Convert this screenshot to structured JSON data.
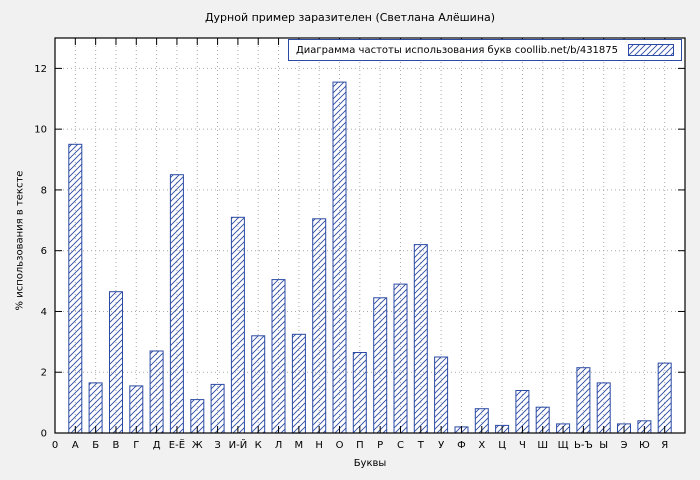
{
  "title": "Дурной пример заразителен (Светлана Алёшина)",
  "legend": {
    "label": "Диаграмма частоты использования букв  coollib.net/b/431875"
  },
  "colors": {
    "bar": "#2b4aa3",
    "grid": "#a8a8a8",
    "axis": "#000000",
    "figure_bg": "#f1f1f1",
    "plot_bg": "#ffffff"
  },
  "chart_data": {
    "type": "bar",
    "title": "Дурной пример заразителен (Светлана Алёшина)",
    "xlabel": "Буквы",
    "ylabel": "% использования в тексте",
    "legend_label": "Диаграмма частоты использования букв  coollib.net/b/431875",
    "legend_position": "top-right",
    "grid": true,
    "origin_label": "0",
    "yticks": [
      0,
      2,
      4,
      6,
      8,
      10,
      12
    ],
    "ylim": [
      0,
      13
    ],
    "categories": [
      "А",
      "Б",
      "В",
      "Г",
      "Д",
      "Е-Ё",
      "Ж",
      "З",
      "И-Й",
      "К",
      "Л",
      "М",
      "Н",
      "О",
      "П",
      "Р",
      "С",
      "Т",
      "У",
      "Ф",
      "Х",
      "Ц",
      "Ч",
      "Ш",
      "Щ",
      "Ь-Ъ",
      "Ы",
      "Э",
      "Ю",
      "Я"
    ],
    "values": [
      9.5,
      1.65,
      4.65,
      1.55,
      2.7,
      8.5,
      1.1,
      1.6,
      7.1,
      3.2,
      5.05,
      3.25,
      7.05,
      11.55,
      2.65,
      4.45,
      4.9,
      6.2,
      2.5,
      0.2,
      0.8,
      0.25,
      1.4,
      0.85,
      0.3,
      2.15,
      1.65,
      0.3,
      0.4,
      2.3
    ]
  }
}
